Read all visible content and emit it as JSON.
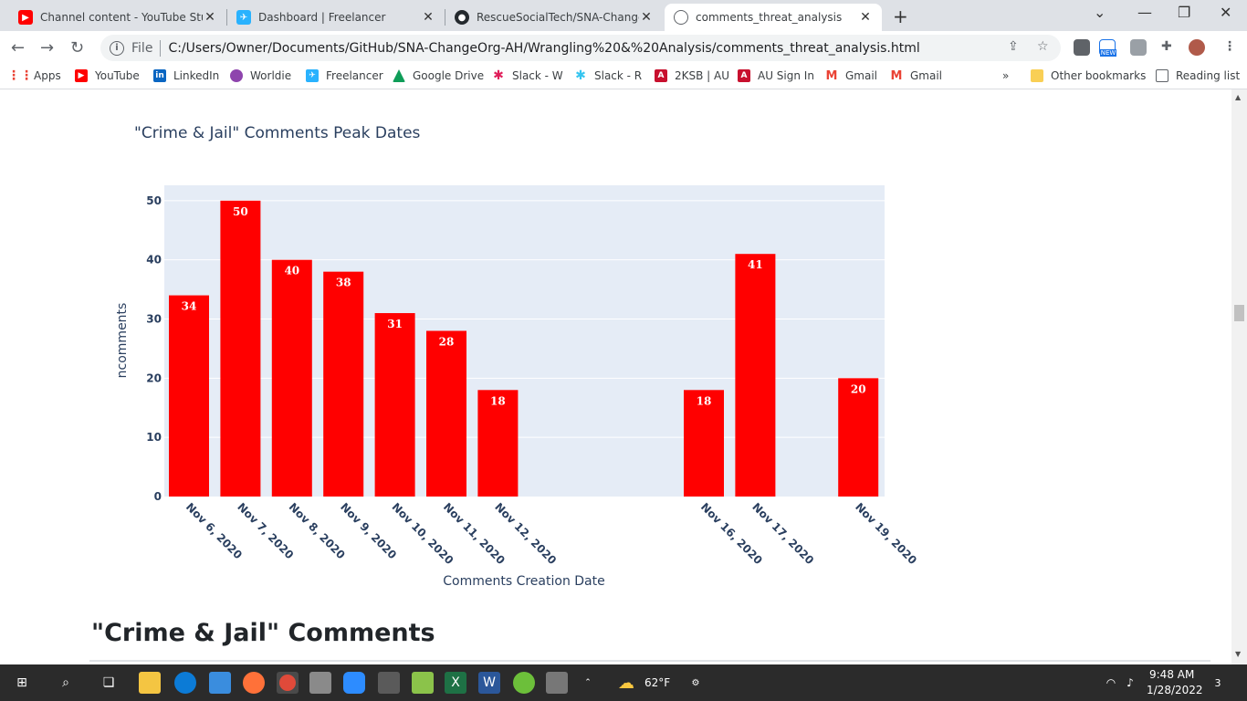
{
  "tabs": [
    {
      "title": "Channel content - YouTube Studi",
      "icon": "youtube-icon",
      "color": "#ff0000"
    },
    {
      "title": "Dashboard | Freelancer",
      "icon": "freelancer-icon",
      "color": "#29b2fe"
    },
    {
      "title": "RescueSocialTech/SNA-ChangeO",
      "icon": "github-icon",
      "color": "#24292e"
    },
    {
      "title": "comments_threat_analysis",
      "icon": "globe-icon",
      "color": "#5f6368"
    }
  ],
  "address_bar": {
    "scheme_label": "File",
    "url": "C:/Users/Owner/Documents/GitHub/SNA-ChangeOrg-AH/Wrangling%20&%20Analysis/comments_threat_analysis.html"
  },
  "bookmarks": [
    {
      "label": "Apps",
      "icon": "apps-grid-icon",
      "color": "#ea4335"
    },
    {
      "label": "YouTube",
      "icon": "youtube-icon",
      "color": "#ff0000"
    },
    {
      "label": "LinkedIn",
      "icon": "linkedin-icon",
      "color": "#0a66c2"
    },
    {
      "label": "Worldie",
      "icon": "worldie-icon",
      "color": "#8e44ad"
    },
    {
      "label": "Freelancer",
      "icon": "freelancer-icon",
      "color": "#29b2fe"
    },
    {
      "label": "Google Drive",
      "icon": "google-drive-icon",
      "color": "#0f9d58"
    },
    {
      "label": "Slack - W",
      "icon": "slack-icon",
      "color": "#4a154b"
    },
    {
      "label": "Slack - R",
      "icon": "slack-icon",
      "color": "#4a154b"
    },
    {
      "label": "2KSB | AU",
      "icon": "au-icon",
      "color": "#c8102e"
    },
    {
      "label": "AU Sign In",
      "icon": "au-icon",
      "color": "#c8102e"
    },
    {
      "label": "Gmail",
      "icon": "gmail-icon",
      "color": "#ea4335"
    },
    {
      "label": "Gmail",
      "icon": "gmail-icon",
      "color": "#ea4335"
    }
  ],
  "bookmarks_overflow": "»",
  "other_bookmarks": "Other bookmarks",
  "reading_list": "Reading list",
  "extension_badge": "NEW",
  "chart_data": {
    "type": "bar",
    "title": "\"Crime & Jail\" Comments Peak Dates",
    "xlabel": "Comments Creation Date",
    "ylabel": "ncomments",
    "x": [
      "2020-11-06",
      "2020-11-07",
      "2020-11-08",
      "2020-11-09",
      "2020-11-10",
      "2020-11-11",
      "2020-11-12",
      "2020-11-16",
      "2020-11-17",
      "2020-11-19"
    ],
    "tick_labels": [
      "Nov 6, 2020",
      "Nov 7, 2020",
      "Nov 8, 2020",
      "Nov 9, 2020",
      "Nov 10, 2020",
      "Nov 11, 2020",
      "Nov 12, 2020",
      "Nov 16, 2020",
      "Nov 17, 2020",
      "Nov 19, 2020"
    ],
    "values": [
      34,
      50,
      40,
      38,
      31,
      28,
      18,
      18,
      41,
      20
    ],
    "ylim": [
      0,
      52.6
    ],
    "yticks": [
      0,
      10,
      20,
      30,
      40,
      50
    ],
    "bar_color": "#ff0000",
    "plot_bg": "#e5ecf6",
    "grid": true
  },
  "section_heading": "\"Crime & Jail\" Comments",
  "taskbar": {
    "weather": "62°F",
    "time": "9:48 AM",
    "date": "1/28/2022",
    "notifications": "3"
  }
}
